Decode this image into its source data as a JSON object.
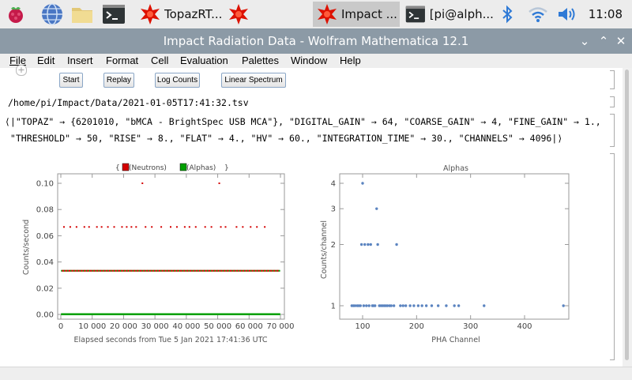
{
  "taskbar": {
    "tasks": [
      {
        "label": "TopazRT..."
      },
      {
        "label": ""
      },
      {
        "label": "Impact ..."
      },
      {
        "label": "[pi@alph..."
      }
    ],
    "clock": "11:08"
  },
  "window": {
    "title": "Impact Radiation Data - Wolfram Mathematica 12.1"
  },
  "menu": [
    "File",
    "Edit",
    "Insert",
    "Format",
    "Cell",
    "Evaluation",
    "Palettes",
    "Window",
    "Help"
  ],
  "buttons": {
    "start": "Start",
    "replay": "Replay",
    "log_counts": "Log Counts",
    "linear_spectrum": "Linear Spectrum"
  },
  "output": {
    "path": "/home/pi/Impact/Data/2021-01-05T17:41:32.tsv",
    "assoc_line1": "⟨|\"TOPAZ\" → {6201010, \"bMCA - BrightSpec USB MCA\"}, \"DIGITAL_GAIN\" → 64, \"COARSE_GAIN\" → 4, \"FINE_GAIN\" → 1.,",
    "assoc_line2": " \"THRESHOLD\" → 50, \"RISE\" → 8., \"FLAT\" → 4., \"HV\" → 60., \"INTEGRATION_TIME\" → 30., \"CHANNELS\" → 4096|⟩"
  },
  "chart_data": [
    {
      "type": "scatter",
      "title": "",
      "legend": [
        {
          "name": "(Neutrons)",
          "color": "#d40000"
        },
        {
          "name": "(Alphas)",
          "color": "#00a000"
        }
      ],
      "legend_placement": "top",
      "xlabel": "Elapsed seconds from Tue 5 Jan 2021 17:41:36 UTC",
      "ylabel": "Counts/second",
      "xlim": [
        0,
        70000
      ],
      "ylim": [
        0,
        0.1
      ],
      "xticks": [
        0,
        10000,
        20000,
        30000,
        40000,
        50000,
        60000,
        70000
      ],
      "xtick_labels": [
        "0",
        "10 000",
        "20 000",
        "30 000",
        "40 000",
        "50 000",
        "60 000",
        "70 000"
      ],
      "yticks": [
        0,
        0.02,
        0.04,
        0.06,
        0.08,
        0.1
      ],
      "ytick_labels": [
        "0.00",
        "0.02",
        "0.04",
        "0.06",
        "0.08",
        "0.10"
      ],
      "series": [
        {
          "name": "(Neutrons)",
          "color": "#d40000",
          "points": [
            [
              1000,
              0.0667
            ],
            [
              3000,
              0.0667
            ],
            [
              5000,
              0.0667
            ],
            [
              7500,
              0.0667
            ],
            [
              9000,
              0.0667
            ],
            [
              11500,
              0.0667
            ],
            [
              13000,
              0.0667
            ],
            [
              15000,
              0.0667
            ],
            [
              17000,
              0.0667
            ],
            [
              19500,
              0.0667
            ],
            [
              21000,
              0.0667
            ],
            [
              22500,
              0.0667
            ],
            [
              24000,
              0.0667
            ],
            [
              26000,
              0.1
            ],
            [
              27000,
              0.0667
            ],
            [
              29000,
              0.0667
            ],
            [
              32000,
              0.0667
            ],
            [
              35000,
              0.0667
            ],
            [
              37000,
              0.0667
            ],
            [
              39500,
              0.0667
            ],
            [
              41000,
              0.0667
            ],
            [
              43000,
              0.0667
            ],
            [
              46000,
              0.0667
            ],
            [
              48000,
              0.0667
            ],
            [
              50500,
              0.1
            ],
            [
              51000,
              0.0667
            ],
            [
              52500,
              0.0667
            ],
            [
              56000,
              0.0667
            ],
            [
              58000,
              0.0667
            ],
            [
              60500,
              0.0667
            ],
            [
              62500,
              0.0667
            ],
            [
              65000,
              0.0667
            ]
          ],
          "baseline_value": 0.0333
        },
        {
          "name": "(Alphas)",
          "color": "#00a000",
          "baseline_value": 0.0333,
          "zero_value": 0
        }
      ]
    },
    {
      "type": "scatter",
      "title": "Alphas",
      "xlabel": "PHA Channel",
      "ylabel": "Counts/channel",
      "scale_y": "log",
      "xlim": [
        70,
        480
      ],
      "ylim": [
        0.85,
        4.4
      ],
      "xticks": [
        100,
        200,
        300,
        400
      ],
      "yticks": [
        1,
        2,
        3,
        4
      ],
      "color": "#5b84c0",
      "points": [
        [
          80,
          1
        ],
        [
          83,
          1
        ],
        [
          86,
          1
        ],
        [
          90,
          1
        ],
        [
          93,
          1
        ],
        [
          96,
          1
        ],
        [
          98,
          2
        ],
        [
          100,
          4
        ],
        [
          102,
          1
        ],
        [
          104,
          2
        ],
        [
          107,
          1
        ],
        [
          110,
          2
        ],
        [
          112,
          1
        ],
        [
          115,
          2
        ],
        [
          118,
          1
        ],
        [
          120,
          1
        ],
        [
          123,
          1
        ],
        [
          126,
          3
        ],
        [
          128,
          2
        ],
        [
          131,
          1
        ],
        [
          134,
          1
        ],
        [
          137,
          1
        ],
        [
          140,
          1
        ],
        [
          143,
          1
        ],
        [
          146,
          1
        ],
        [
          150,
          1
        ],
        [
          153,
          1
        ],
        [
          158,
          1
        ],
        [
          163,
          2
        ],
        [
          170,
          1
        ],
        [
          175,
          1
        ],
        [
          180,
          1
        ],
        [
          188,
          1
        ],
        [
          195,
          1
        ],
        [
          203,
          1
        ],
        [
          210,
          1
        ],
        [
          218,
          1
        ],
        [
          228,
          1
        ],
        [
          240,
          1
        ],
        [
          255,
          1
        ],
        [
          270,
          1
        ],
        [
          278,
          1
        ],
        [
          325,
          1
        ],
        [
          472,
          1
        ]
      ]
    }
  ]
}
